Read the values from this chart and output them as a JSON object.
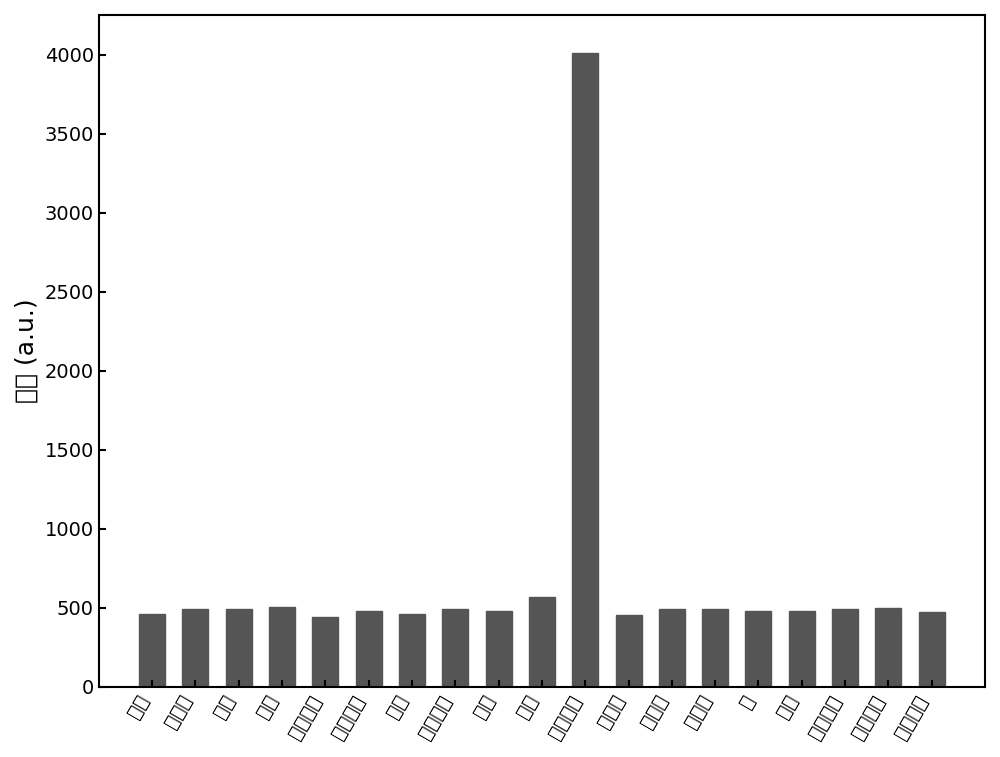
{
  "categories": [
    "空白",
    "乙酰胺",
    "甲醇",
    "乙醇",
    "二氯甲烷",
    "三氯甲烷",
    "氯仿",
    "四氢呋喃",
    "乙腈",
    "丙酮",
    "乙酰丙酮",
    "正丁醇",
    "异丁醇",
    "环己烷",
    "苯",
    "甲苯",
    "邻二甲苯",
    "间二甲苯",
    "对二甲苯"
  ],
  "values": [
    460,
    490,
    495,
    505,
    445,
    480,
    460,
    490,
    480,
    570,
    4010,
    455,
    490,
    495,
    480,
    480,
    490,
    500,
    475
  ],
  "bar_color": "#555555",
  "bar_edgecolor": "#555555",
  "ylabel": "强度 (a.u.)",
  "ylim": [
    0,
    4250
  ],
  "yticks": [
    0,
    500,
    1000,
    1500,
    2000,
    2500,
    3000,
    3500,
    4000
  ],
  "ylabel_fontsize": 18,
  "tick_fontsize": 14,
  "xtick_rotation": 60,
  "bar_width": 0.6,
  "figure_facecolor": "#ffffff"
}
